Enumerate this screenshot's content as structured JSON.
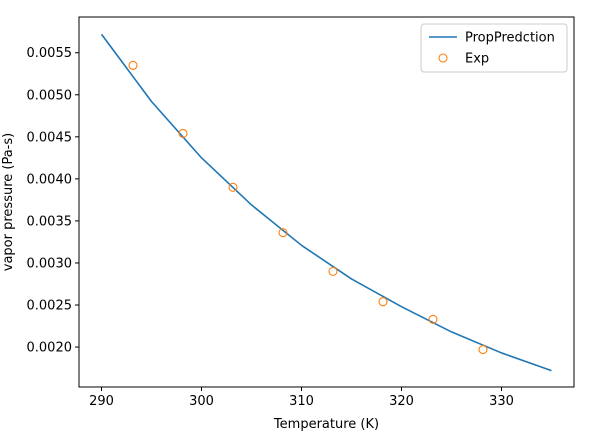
{
  "chart_data": {
    "type": "line",
    "title": "",
    "xlabel": "Temperature (K)",
    "ylabel": "vapor pressure (Pa-s)",
    "xlim": [
      287.75,
      337.25
    ],
    "ylim": [
      0.001525,
      0.005925
    ],
    "xticks": [
      290,
      300,
      310,
      320,
      330
    ],
    "yticks": [
      0.002,
      0.0025,
      0.003,
      0.0035,
      0.004,
      0.0045,
      0.005,
      0.0055
    ],
    "xtick_labels": [
      "290",
      "300",
      "310",
      "320",
      "330"
    ],
    "ytick_labels": [
      "0.0020",
      "0.0025",
      "0.0030",
      "0.0035",
      "0.0040",
      "0.0045",
      "0.0050",
      "0.0055"
    ],
    "grid": false,
    "legend_position": "top-right",
    "series": [
      {
        "name": "PropPredction",
        "kind": "line",
        "color": "#1f77b4",
        "x": [
          290,
          295,
          300,
          305,
          310,
          315,
          320,
          325,
          330,
          335
        ],
        "y": [
          0.00572,
          0.00492,
          0.00425,
          0.00369,
          0.00321,
          0.00281,
          0.00248,
          0.00218,
          0.00193,
          0.00172
        ]
      },
      {
        "name": "Exp",
        "kind": "scatter",
        "marker": "open-circle",
        "color": "#ff7f0e",
        "x": [
          293.15,
          298.15,
          303.15,
          308.15,
          313.15,
          318.15,
          323.15,
          328.15
        ],
        "y": [
          0.00535,
          0.00454,
          0.0039,
          0.00336,
          0.0029,
          0.00254,
          0.00233,
          0.00197
        ]
      }
    ]
  }
}
